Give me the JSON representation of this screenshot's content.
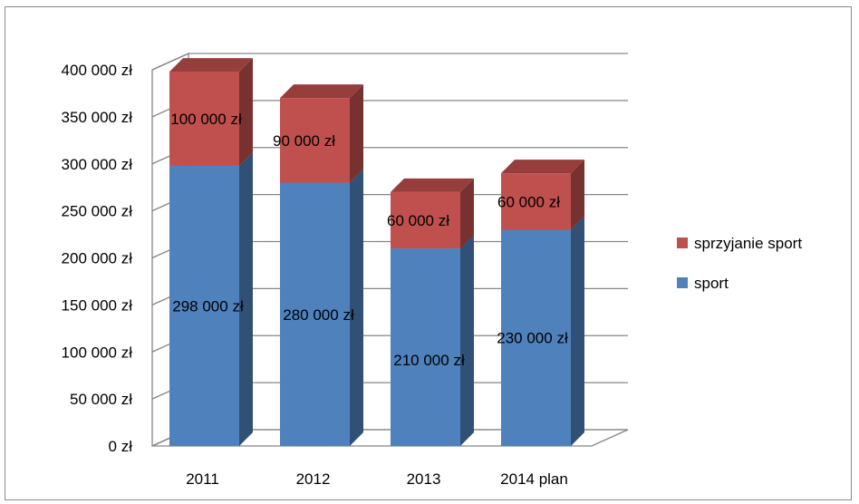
{
  "chart_data": {
    "type": "bar",
    "stacked": true,
    "three_d": true,
    "categories": [
      "2011",
      "2012",
      "2013",
      "2014 plan"
    ],
    "series": [
      {
        "name": "sport",
        "values": [
          298000,
          280000,
          210000,
          230000
        ],
        "color": "#4f81bd"
      },
      {
        "name": "sprzyjanie sport",
        "values": [
          100000,
          90000,
          60000,
          60000
        ],
        "color": "#c0504d"
      }
    ],
    "data_labels": {
      "sport": [
        "298 000 zł",
        "280 000 zł",
        "210 000 zł",
        "230 000 zł"
      ],
      "sprzyjanie sport": [
        "100 000 zł",
        "90 000 zł",
        "60 000 zł",
        "60 000 zł"
      ]
    },
    "y_tick_values": [
      0,
      50000,
      100000,
      150000,
      200000,
      250000,
      300000,
      350000,
      400000
    ],
    "y_tick_labels": [
      "0 zł",
      "50 000 zł",
      "100 000 zł",
      "150 000 zł",
      "200 000 zł",
      "250 000 zł",
      "300 000 zł",
      "350 000 zł",
      "400 000 zł"
    ],
    "ylim": [
      0,
      400000
    ],
    "grid": true,
    "legend_position": "right",
    "legend_items": [
      "sprzyjanie sport",
      "sport"
    ],
    "title": "",
    "xlabel": "",
    "ylabel": ""
  }
}
